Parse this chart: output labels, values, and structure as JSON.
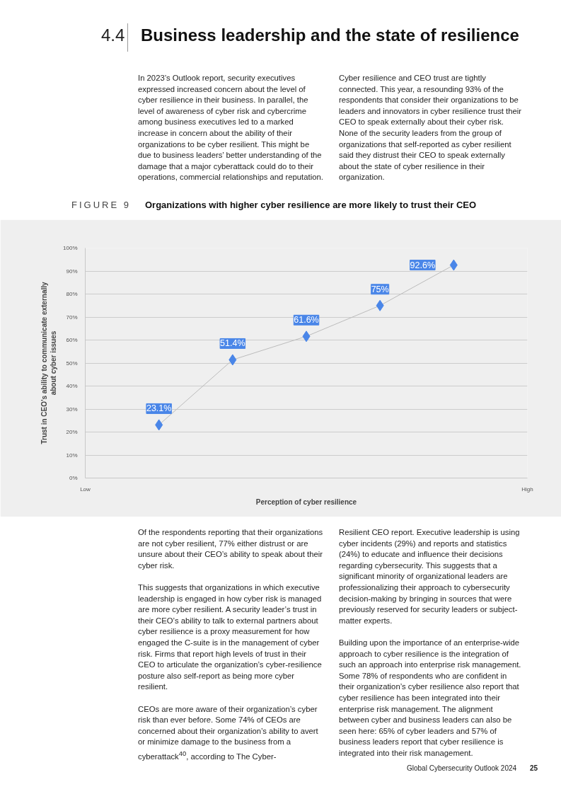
{
  "chart_data": {
    "type": "line",
    "title": "Organizations with higher cyber resilience are more likely to trust their CEO",
    "xlabel": "Perception of cyber resilience",
    "ylabel": "Trust in CEO’s ability to communicate externally\nabout cyber issues",
    "categories": [
      "Low",
      null,
      null,
      null,
      null,
      null,
      "High"
    ],
    "series": [
      {
        "color": "#4a86e8",
        "values": [
          null,
          23.1,
          51.4,
          61.6,
          75,
          92.6,
          null
        ],
        "value_labels": [
          null,
          "23.1%",
          "51.4%",
          "61.6%",
          "75%",
          "92.6%",
          null
        ]
      }
    ],
    "marker": "diamond",
    "ylim": [
      0,
      100
    ],
    "yticks": [
      {
        "value": 0,
        "label": "0%"
      },
      {
        "value": 10,
        "label": "10%"
      },
      {
        "value": 20,
        "label": "20%"
      },
      {
        "value": 30,
        "label": "30%"
      },
      {
        "value": 40,
        "label": "40%"
      },
      {
        "value": 50,
        "label": "50%"
      },
      {
        "value": 60,
        "label": "60%"
      },
      {
        "value": 70,
        "label": "70%"
      },
      {
        "value": 80,
        "label": "80%"
      },
      {
        "value": 90,
        "label": "90%"
      },
      {
        "value": 100,
        "label": "100%"
      }
    ],
    "grid": "y",
    "annotations": [
      "4.4",
      "Business leadership and the state of resilience",
      "In 2023’s Outlook report, security executives expressed increased concern about the level of cyber resilience in their business. In parallel, the level of awareness of cyber risk and cybercrime among business executives led to a marked increase in concern about the ability of their organizations to be cyber resilient. This might be due to business leaders’ better understanding of the damage that a major cyberattack could do to their operations, commercial relationships and reputation.",
      "Cyber resilience and CEO trust are tightly connected. This year, a resounding 93% of the respondents that consider their organizations to be leaders and innovators in cyber resilience trust their CEO to speak externally about their cyber risk. None of the security leaders from the group of organizations that self-reported as cyber resilient said they distrust their CEO to speak externally about the state of cyber resilience in their organization.",
      "FIGURE 9",
      "Of the respondents reporting that their organizations are not cyber resilient, 77% either distrust or are unsure about their CEO’s ability to speak about their cyber risk.\n\nThis suggests that organizations in which executive leadership is engaged in how cyber risk is managed are more cyber resilient. A security leader’s trust in their CEO’s ability to talk to external partners about cyber resilience is a proxy measurement for how engaged the C-suite is in the management of cyber risk. Firms that report high levels of trust in their CEO to articulate the organization’s cyber-resilience posture also self-report as being more cyber resilient.\n\nCEOs are more aware of their organization’s cyber risk than ever before. Some 74% of CEOs are concerned about their organization’s ability to avert or minimize damage to the business from a cyberattack$^{40}$, according to The Cyber-",
      "Resilient CEO report. Executive leadership is using cyber incidents (29%) and reports and statistics (24%) to educate and influence their decisions regarding cybersecurity. This suggests that a significant minority of organizational leaders are professionalizing their approach to cybersecurity decision-making by bringing in sources that were previously reserved for security leaders or subject-matter experts.\n\nBuilding upon the importance of an enterprise-wide approach to cyber resilience is the integration of such an approach into enterprise risk management. Some 78% of respondents who are confident in their organization’s cyber resilience also report that cyber resilience has been integrated into their enterprise risk management. The alignment between cyber and business leaders can also be seen here: 65% of cyber leaders and 57% of business leaders report that cyber resilience is integrated into their risk management.",
      "Global Cybersecurity Outlook 2024",
      "25"
    ]
  }
}
